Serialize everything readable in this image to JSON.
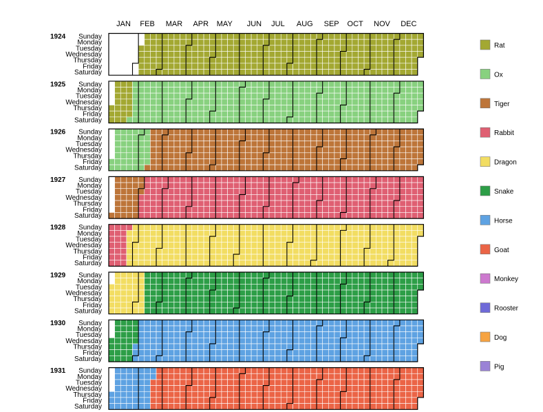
{
  "chart_data": {
    "type": "heatmap",
    "layout": "calendar",
    "title": "",
    "months": [
      "JAN",
      "FEB",
      "MAR",
      "APR",
      "MAY",
      "JUN",
      "JUL",
      "AUG",
      "SEP",
      "OCT",
      "NOV",
      "DEC"
    ],
    "weekdays": [
      "Sunday",
      "Monday",
      "Tuesday",
      "Wednesday",
      "Thursday",
      "Friday",
      "Saturday"
    ],
    "years": [
      1924,
      1925,
      1926,
      1927,
      1928,
      1929,
      1930,
      1931
    ],
    "legend": [
      {
        "name": "Rat",
        "color": "#a3a832"
      },
      {
        "name": "Ox",
        "color": "#88d17f"
      },
      {
        "name": "Tiger",
        "color": "#bd7539"
      },
      {
        "name": "Rabbit",
        "color": "#df5f72"
      },
      {
        "name": "Dragon",
        "color": "#f2dd62"
      },
      {
        "name": "Snake",
        "color": "#2d9e47"
      },
      {
        "name": "Horse",
        "color": "#5ea2e2"
      },
      {
        "name": "Goat",
        "color": "#eb6446"
      },
      {
        "name": "Monkey",
        "color": "#cd79cf"
      },
      {
        "name": "Rooster",
        "color": "#6f6ad8"
      },
      {
        "name": "Dog",
        "color": "#f6a341"
      },
      {
        "name": "Pig",
        "color": "#9a82d6"
      }
    ],
    "year_start_days": [
      {
        "year": 1924,
        "date": "1924-02-05",
        "sign": "Rat"
      },
      {
        "year": 1925,
        "date": "1925-01-24",
        "sign": "Ox"
      },
      {
        "year": 1926,
        "date": "1926-02-13",
        "sign": "Tiger"
      },
      {
        "year": 1927,
        "date": "1927-02-02",
        "sign": "Rabbit"
      },
      {
        "year": 1928,
        "date": "1928-01-23",
        "sign": "Dragon"
      },
      {
        "year": 1929,
        "date": "1929-02-10",
        "sign": "Snake"
      },
      {
        "year": 1930,
        "date": "1930-01-30",
        "sign": "Horse"
      },
      {
        "year": 1931,
        "date": "1931-02-17",
        "sign": "Goat"
      }
    ],
    "empty_color": "#ffffff",
    "grid_line_color": "#ffffff",
    "border_color": "#000000"
  }
}
